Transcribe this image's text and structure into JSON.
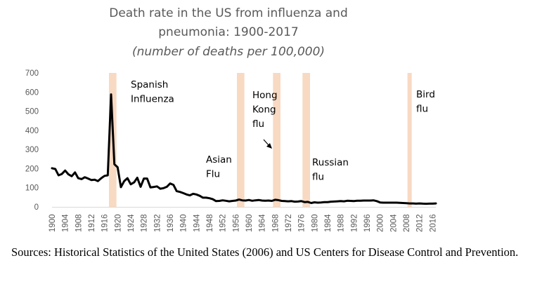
{
  "chart_data": {
    "type": "line",
    "title": "Death rate in the US from influenza and pneumonia: 1900-2017",
    "title_lines": [
      "Death rate in the US from influenza and",
      "pneumonia: 1900-2017"
    ],
    "subtitle": "(number of deaths per 100,000)",
    "xlabel": "",
    "ylabel": "",
    "xlim": [
      1900,
      2017
    ],
    "ylim": [
      0,
      700
    ],
    "y_ticks": [
      0,
      100,
      200,
      300,
      400,
      500,
      600,
      700
    ],
    "x_ticks": [
      1900,
      1904,
      1908,
      1912,
      1916,
      1920,
      1924,
      1928,
      1932,
      1936,
      1940,
      1944,
      1948,
      1952,
      1956,
      1960,
      1964,
      1968,
      1972,
      1976,
      1980,
      1984,
      1988,
      1992,
      1996,
      2000,
      2004,
      2008,
      2012,
      2016
    ],
    "grid": false,
    "series": [
      {
        "color": "#000000",
        "x": [
          1900,
          1901,
          1902,
          1903,
          1904,
          1905,
          1906,
          1907,
          1908,
          1909,
          1910,
          1911,
          1912,
          1913,
          1914,
          1915,
          1916,
          1917,
          1918,
          1919,
          1920,
          1921,
          1922,
          1923,
          1924,
          1925,
          1926,
          1927,
          1928,
          1929,
          1930,
          1931,
          1932,
          1933,
          1934,
          1935,
          1936,
          1937,
          1938,
          1939,
          1940,
          1941,
          1942,
          1943,
          1944,
          1945,
          1946,
          1947,
          1948,
          1949,
          1950,
          1951,
          1952,
          1953,
          1954,
          1955,
          1956,
          1957,
          1958,
          1959,
          1960,
          1961,
          1962,
          1963,
          1964,
          1965,
          1966,
          1967,
          1968,
          1969,
          1970,
          1971,
          1972,
          1973,
          1974,
          1975,
          1976,
          1977,
          1978,
          1979,
          1980,
          1981,
          1982,
          1983,
          1984,
          1985,
          1986,
          1987,
          1988,
          1989,
          1990,
          1991,
          1992,
          1993,
          1994,
          1995,
          1996,
          1997,
          1998,
          1999,
          2000,
          2001,
          2002,
          2003,
          2004,
          2005,
          2006,
          2007,
          2008,
          2009,
          2010,
          2011,
          2012,
          2013,
          2014,
          2015,
          2016,
          2017
        ],
        "values": [
          202,
          198,
          165,
          172,
          190,
          170,
          160,
          180,
          150,
          145,
          155,
          148,
          140,
          142,
          135,
          150,
          162,
          165,
          588,
          223,
          207,
          103,
          135,
          150,
          118,
          128,
          152,
          105,
          148,
          148,
          102,
          104,
          107,
          95,
          98,
          105,
          122,
          115,
          82,
          78,
          72,
          65,
          60,
          68,
          65,
          58,
          48,
          48,
          45,
          40,
          30,
          31,
          34,
          32,
          29,
          31,
          33,
          38,
          34,
          33,
          36,
          32,
          34,
          36,
          33,
          32,
          33,
          31,
          37,
          35,
          31,
          30,
          29,
          30,
          27,
          28,
          30,
          25,
          26,
          20,
          24,
          22,
          23,
          25,
          25,
          27,
          28,
          29,
          30,
          29,
          32,
          31,
          30,
          32,
          32,
          33,
          33,
          33,
          34,
          30,
          23,
          22,
          22,
          22,
          22,
          22,
          21,
          20,
          19,
          18,
          18,
          17,
          18,
          17,
          16,
          17,
          17,
          18
        ]
      }
    ],
    "highlight_color": "#f8d9c2",
    "highlights": [
      {
        "start": 1918,
        "end": 1919
      },
      {
        "start": 1957,
        "end": 1958
      },
      {
        "start": 1968,
        "end": 1969
      },
      {
        "start": 1977,
        "end": 1978
      },
      {
        "start": 2009,
        "end": 2009
      }
    ],
    "annotations": [
      {
        "lines": [
          "Spanish",
          "Influenza"
        ]
      },
      {
        "lines": [
          "Asian",
          "Flu"
        ]
      },
      {
        "lines": [
          "Hong",
          "Kong",
          "flu"
        ]
      },
      {
        "lines": [
          "Russian",
          "flu"
        ]
      },
      {
        "lines": [
          "Bird",
          "flu"
        ]
      }
    ],
    "source": "Sources: Historical Statistics of the United States (2006) and US Centers for Disease Control and Prevention."
  }
}
